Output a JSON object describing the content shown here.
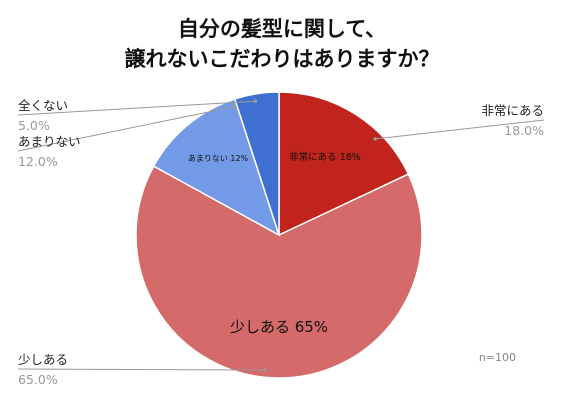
{
  "chart_data": {
    "type": "pie",
    "title_lines": [
      "自分の髪型に関して、",
      "譲れないこだわりはありますか？"
    ],
    "slices": [
      {
        "name": "非常にある",
        "value": 18.0,
        "value_label": "18.0%",
        "inner_label": "非常にある 18%",
        "color": "#c0241c"
      },
      {
        "name": "少しある",
        "value": 65.0,
        "value_label": "65.0%",
        "inner_label": "少しある 65%",
        "color": "#d46a6a"
      },
      {
        "name": "あまりない",
        "value": 12.0,
        "value_label": "12.0%",
        "inner_label": "あまりない 12%",
        "color": "#739ae6"
      },
      {
        "name": "全くない",
        "value": 5.0,
        "value_label": "5.0%",
        "inner_label": "",
        "color": "#3f6fd1"
      }
    ],
    "note": "n=100"
  }
}
